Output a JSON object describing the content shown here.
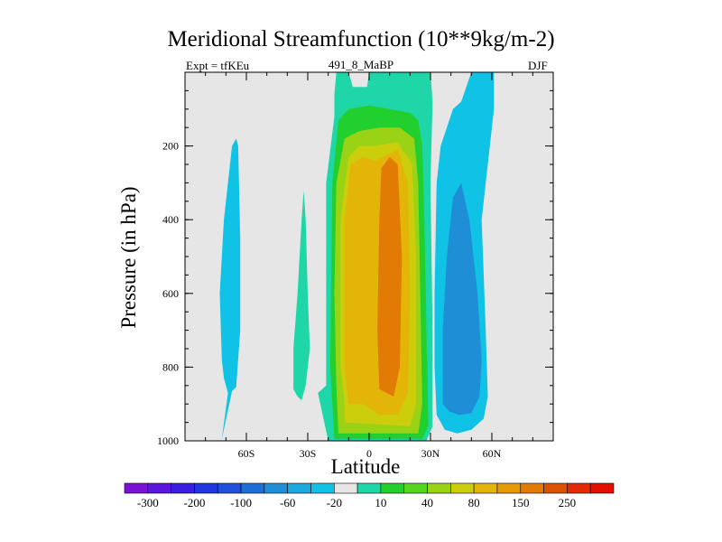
{
  "figure": {
    "title": "Meridional Streamfunction (10**9kg/m-2)",
    "left_string": "Expt = tfKEu",
    "center_string": "491_8_MaBP",
    "right_string": "DJF"
  },
  "chart_data": {
    "type": "heatmap",
    "title": "Meridional Streamfunction (10**9kg/m-2)",
    "xlabel": "Latitude",
    "ylabel": "Pressure (in hPa)",
    "xlim": [
      -90,
      90
    ],
    "ylim": [
      1000,
      0
    ],
    "x_ticks": [
      {
        "value": -60,
        "label": "60S"
      },
      {
        "value": -30,
        "label": "30S"
      },
      {
        "value": 0,
        "label": "0"
      },
      {
        "value": 30,
        "label": "30N"
      },
      {
        "value": 60,
        "label": "60N"
      }
    ],
    "y_ticks": [
      {
        "value": 200,
        "label": "200"
      },
      {
        "value": 400,
        "label": "400"
      },
      {
        "value": 600,
        "label": "600"
      },
      {
        "value": 800,
        "label": "800"
      },
      {
        "value": 1000,
        "label": "1000"
      }
    ],
    "background_color": "#e6e6e6",
    "colorbar": {
      "colors": [
        "#7a12d6",
        "#5a16dc",
        "#3a1ee0",
        "#2135e0",
        "#2150da",
        "#1f6ed6",
        "#1e8ed6",
        "#19a9de",
        "#10c3e6",
        "#e6e6e6",
        "#1fd6a8",
        "#21d02f",
        "#55d51c",
        "#9ad215",
        "#ccce0c",
        "#e3b508",
        "#e39a04",
        "#e27b03",
        "#dc5203",
        "#e32b03",
        "#e30f00"
      ],
      "labels": [
        "-300",
        "-200",
        "-100",
        "-60",
        "-20",
        "10",
        "40",
        "80",
        "150",
        "250"
      ]
    },
    "contour_regions": [
      {
        "level": -20,
        "color": "#10c3e6",
        "points": [
          [
            -72,
            995
          ],
          [
            -67,
            865
          ],
          [
            -65,
            855
          ],
          [
            -63,
            700
          ],
          [
            -63,
            450
          ],
          [
            -64,
            200
          ],
          [
            -65,
            180
          ],
          [
            -67,
            200
          ],
          [
            -71,
            400
          ],
          [
            -73,
            600
          ],
          [
            -72,
            780
          ],
          [
            -71,
            830
          ],
          [
            -70,
            850
          ],
          [
            -69,
            870
          ]
        ]
      },
      {
        "level": 10,
        "color": "#1fd6a8",
        "points": [
          [
            -37,
            860
          ],
          [
            -35,
            880
          ],
          [
            -33,
            890
          ],
          [
            -31,
            850
          ],
          [
            -29,
            750
          ],
          [
            -30,
            600
          ],
          [
            -31,
            400
          ],
          [
            -32,
            320
          ],
          [
            -33,
            400
          ],
          [
            -35,
            600
          ],
          [
            -37,
            750
          ]
        ]
      },
      {
        "level": -20,
        "color": "#10c3e6",
        "points": [
          [
            33,
            930
          ],
          [
            37,
            970
          ],
          [
            43,
            980
          ],
          [
            50,
            970
          ],
          [
            56,
            940
          ],
          [
            58,
            880
          ],
          [
            57,
            700
          ],
          [
            55,
            400
          ],
          [
            58,
            250
          ],
          [
            61,
            100
          ],
          [
            61,
            0
          ],
          [
            50,
            0
          ],
          [
            45,
            80
          ],
          [
            41,
            100
          ],
          [
            35,
            200
          ],
          [
            33,
            300
          ],
          [
            32,
            600
          ],
          [
            32,
            800
          ]
        ]
      },
      {
        "level": -60,
        "color": "#1e8ed6",
        "points": [
          [
            36,
            900
          ],
          [
            39,
            920
          ],
          [
            44,
            930
          ],
          [
            50,
            925
          ],
          [
            54,
            880
          ],
          [
            55,
            780
          ],
          [
            53,
            600
          ],
          [
            49,
            400
          ],
          [
            45,
            300
          ],
          [
            41,
            340
          ],
          [
            38,
            500
          ],
          [
            36,
            700
          ]
        ]
      },
      {
        "level": 10,
        "color": "#1fd6a8",
        "points": [
          [
            -20,
            1000
          ],
          [
            28,
            1000
          ],
          [
            31,
            960
          ],
          [
            31,
            700
          ],
          [
            30,
            300
          ],
          [
            31,
            80
          ],
          [
            30,
            0
          ],
          [
            0,
            0
          ],
          [
            -1,
            40
          ],
          [
            -8,
            40
          ],
          [
            -10,
            0
          ],
          [
            -16,
            0
          ],
          [
            -17,
            60
          ],
          [
            -17,
            120
          ],
          [
            -21,
            300
          ],
          [
            -21,
            600
          ],
          [
            -21,
            850
          ],
          [
            -25,
            870
          ]
        ]
      },
      {
        "level": 40,
        "color": "#21d02f",
        "points": [
          [
            -17,
            995
          ],
          [
            26,
            995
          ],
          [
            29,
            960
          ],
          [
            28,
            700
          ],
          [
            27,
            400
          ],
          [
            26,
            200
          ],
          [
            24,
            130
          ],
          [
            20,
            110
          ],
          [
            10,
            100
          ],
          [
            0,
            90
          ],
          [
            -10,
            100
          ],
          [
            -15,
            130
          ],
          [
            -18,
            300
          ],
          [
            -19,
            800
          ]
        ]
      },
      {
        "level": 80,
        "color": "#9ad215",
        "points": [
          [
            -15,
            980
          ],
          [
            24,
            980
          ],
          [
            26,
            900
          ],
          [
            25,
            600
          ],
          [
            24,
            300
          ],
          [
            22,
            180
          ],
          [
            15,
            150
          ],
          [
            5,
            150
          ],
          [
            -5,
            160
          ],
          [
            -12,
            180
          ],
          [
            -16,
            300
          ],
          [
            -17,
            600
          ],
          [
            -16,
            850
          ]
        ]
      },
      {
        "level": 150,
        "color": "#ccce0c",
        "points": [
          [
            -12,
            950
          ],
          [
            20,
            960
          ],
          [
            23,
            900
          ],
          [
            23,
            500
          ],
          [
            21,
            250
          ],
          [
            14,
            190
          ],
          [
            3,
            200
          ],
          [
            -5,
            200
          ],
          [
            -10,
            230
          ],
          [
            -14,
            400
          ],
          [
            -14,
            800
          ],
          [
            -12,
            900
          ]
        ]
      },
      {
        "level": 200,
        "color": "#e3b508",
        "points": [
          [
            -10,
            900
          ],
          [
            -3,
            900
          ],
          [
            5,
            930
          ],
          [
            14,
            930
          ],
          [
            19,
            870
          ],
          [
            20,
            600
          ],
          [
            19,
            300
          ],
          [
            14,
            210
          ],
          [
            3,
            240
          ],
          [
            -3,
            230
          ],
          [
            -9,
            250
          ],
          [
            -12,
            400
          ],
          [
            -12,
            800
          ]
        ]
      },
      {
        "level": 250,
        "color": "#e27b03",
        "points": [
          [
            5,
            860
          ],
          [
            12,
            880
          ],
          [
            15,
            800
          ],
          [
            16,
            500
          ],
          [
            14,
            250
          ],
          [
            10,
            230
          ],
          [
            6,
            260
          ],
          [
            5,
            400
          ],
          [
            4,
            700
          ]
        ]
      }
    ]
  }
}
